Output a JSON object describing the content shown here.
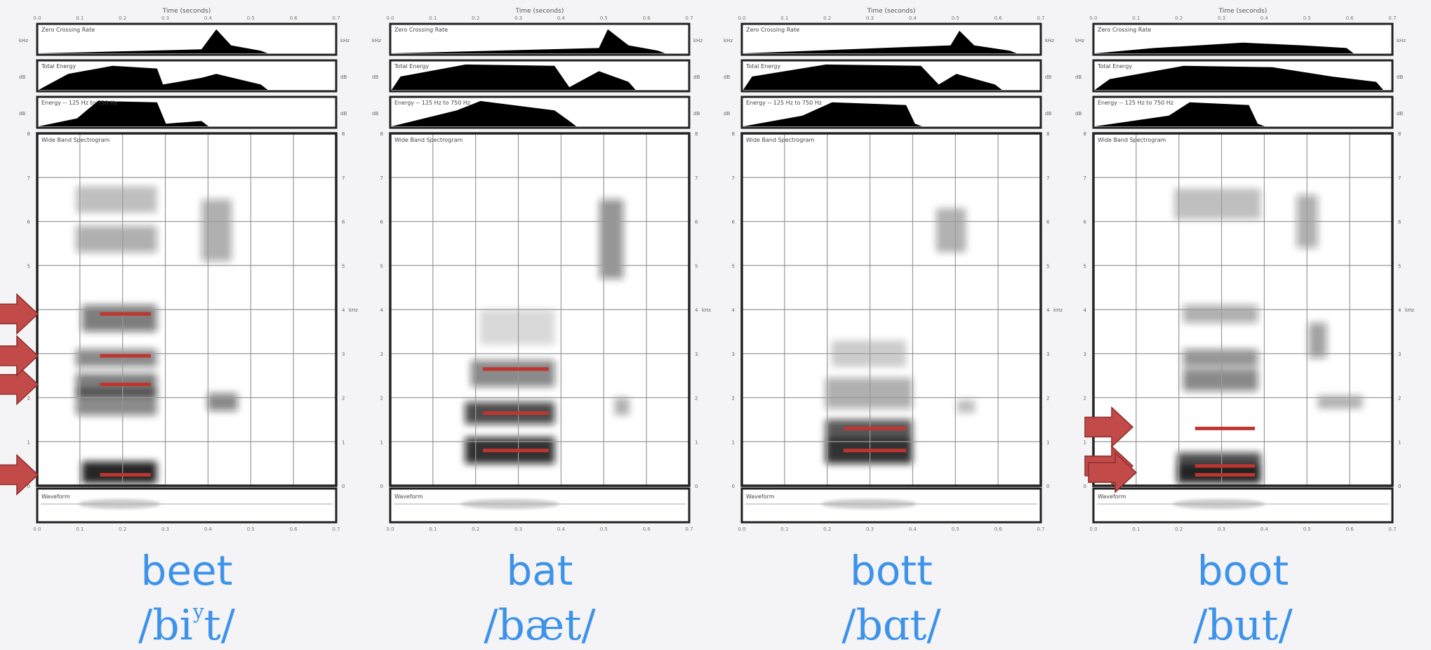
{
  "panel_text": {
    "time_axis": "Time (seconds)",
    "zcr": "Zero Crossing Rate",
    "total_energy": "Total Energy",
    "lowband_energy": "Energy -- 125 Hz to 750 Hz",
    "spectrogram": "Wide Band Spectrogram",
    "waveform": "Waveform",
    "khz_unit": "kHz",
    "db_unit": "dB",
    "freq_ticks": [
      "0",
      "1",
      "2",
      "3",
      "4",
      "5",
      "6",
      "7",
      "8"
    ],
    "time_ticks": [
      "0.0",
      "0.1",
      "0.2",
      "0.3",
      "0.4",
      "0.5",
      "0.6",
      "0.7"
    ]
  },
  "words": [
    {
      "word": "beet",
      "ipa": "/bi",
      "ipa_sup": "y",
      "ipa_end": "t/"
    },
    {
      "word": "bat",
      "ipa": "/bæt/",
      "ipa_sup": "",
      "ipa_end": ""
    },
    {
      "word": "bott",
      "ipa": "/bɑt/",
      "ipa_sup": "",
      "ipa_end": ""
    },
    {
      "word": "boot",
      "ipa": "/bu",
      "ipa_sup": "",
      "ipa_end": "t/"
    }
  ],
  "formants_khz": [
    [
      0.25,
      2.3,
      2.95,
      3.9
    ],
    [
      0.8,
      1.65,
      2.65
    ],
    [
      0.8,
      1.3
    ],
    [
      0.25,
      0.45,
      1.3
    ]
  ],
  "colors": {
    "formant": "#c0352e",
    "arrow": "#c24a48",
    "word": "#3d93ea"
  }
}
